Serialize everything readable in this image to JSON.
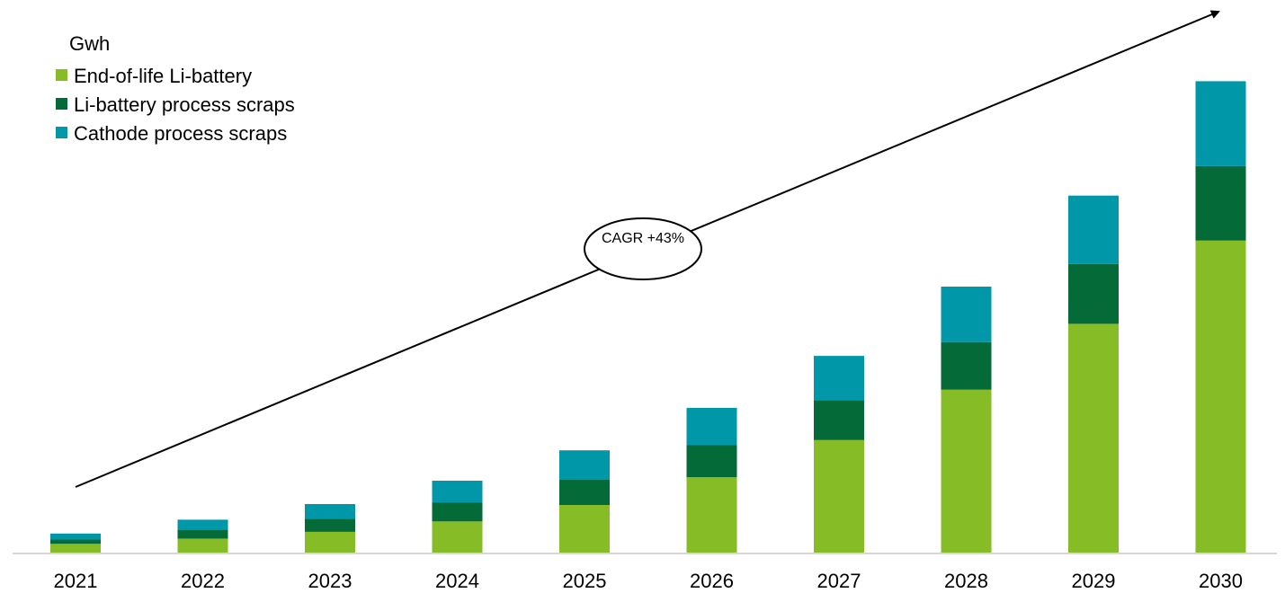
{
  "chart_data": {
    "type": "bar",
    "stacked": true,
    "unit_label": "Gwh",
    "categories": [
      "2021",
      "2022",
      "2023",
      "2024",
      "2025",
      "2026",
      "2027",
      "2028",
      "2029",
      "2030"
    ],
    "series": [
      {
        "name": "End-of-life Li-battery",
        "color": "#86bc25",
        "values": [
          10,
          16,
          24,
          36,
          55,
          87,
          130,
          188,
          264,
          360
        ]
      },
      {
        "name": "Li-battery process scraps",
        "color": "#046a38",
        "values": [
          5,
          10,
          15,
          22,
          29,
          37,
          46,
          55,
          69,
          86
        ]
      },
      {
        "name": "Cathode process scraps",
        "color": "#0097a9",
        "values": [
          7,
          12,
          17,
          25,
          34,
          43,
          51,
          64,
          79,
          98
        ]
      }
    ],
    "ylim": [
      0,
      560
    ],
    "grid": false,
    "legend_position": "top-left",
    "annotation": {
      "text": "CAGR +43%"
    }
  }
}
